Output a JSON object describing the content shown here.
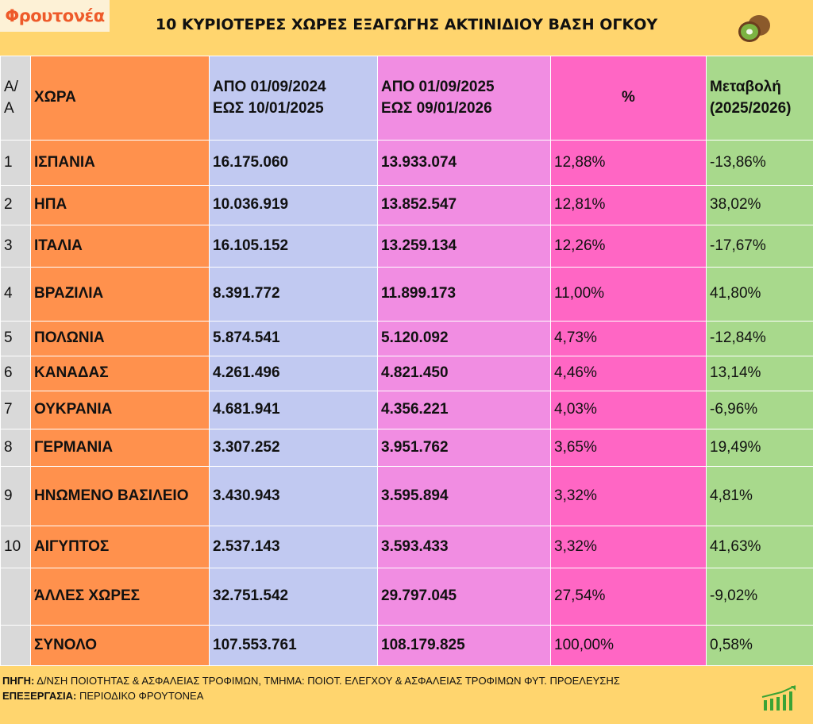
{
  "logo": {
    "brand": "Φρουτονέα"
  },
  "title": "10 ΚΥΡΙΟΤΕΡΕΣ ΧΩΡΕΣ ΕΞΑΓΩΓΗΣ ΑΚΤΙΝΙΔΙΟΥ ΒΑΣΗ ΟΓΚΟΥ",
  "header": {
    "aa": "Α/Α",
    "country": "ΧΩΡΑ",
    "p1_line1": "ΑΠΟ 01/09/2024",
    "p1_line2": "ΕΩΣ  10/01/2025",
    "p2_line1": "ΑΠΟ 01/09/2025",
    "p2_line2": "ΕΩΣ  09/01/2026",
    "pct": "%",
    "change_line1": "Μεταβολή",
    "change_line2": "(2025/2026)"
  },
  "rows": [
    {
      "aa": "1",
      "country": "ΙΣΠΑΝΙΑ",
      "v1": "16.175.060",
      "v2": "13.933.074",
      "pct": "12,88%",
      "change": "-13,86%"
    },
    {
      "aa": "2",
      "country": "ΗΠΑ",
      "v1": "10.036.919",
      "v2": "13.852.547",
      "pct": "12,81%",
      "change": "38,02%"
    },
    {
      "aa": "3",
      "country": "ΙΤΑΛΙΑ",
      "v1": "16.105.152",
      "v2": "13.259.134",
      "pct": "12,26%",
      "change": "-17,67%"
    },
    {
      "aa": "4",
      "country": "ΒΡΑΖΙΛΙΑ",
      "v1": "8.391.772",
      "v2": "11.899.173",
      "pct": "11,00%",
      "change": "41,80%"
    },
    {
      "aa": "5",
      "country": "ΠΟΛΩΝΙΑ",
      "v1": "5.874.541",
      "v2": "5.120.092",
      "pct": "4,73%",
      "change": "-12,84%"
    },
    {
      "aa": "6",
      "country": "ΚΑΝΑΔΑΣ",
      "v1": "4.261.496",
      "v2": "4.821.450",
      "pct": "4,46%",
      "change": "13,14%"
    },
    {
      "aa": "7",
      "country": "ΟΥΚΡΑΝΙΑ",
      "v1": "4.681.941",
      "v2": "4.356.221",
      "pct": "4,03%",
      "change": "-6,96%"
    },
    {
      "aa": "8",
      "country": "ΓΕΡΜΑΝΙΑ",
      "v1": "3.307.252",
      "v2": "3.951.762",
      "pct": "3,65%",
      "change": "19,49%"
    },
    {
      "aa": "9",
      "country": "ΗΝΩΜΕΝΟ ΒΑΣΙΛΕΙΟ",
      "v1": "3.430.943",
      "v2": "3.595.894",
      "pct": "3,32%",
      "change": "4,81%"
    },
    {
      "aa": "10",
      "country": "ΑΙΓΥΠΤΟΣ",
      "v1": "2.537.143",
      "v2": "3.593.433",
      "pct": "3,32%",
      "change": "41,63%"
    },
    {
      "aa": "",
      "country": "ΆΛΛΕΣ ΧΩΡΕΣ",
      "v1": "32.751.542",
      "v2": "29.797.045",
      "pct": "27,54%",
      "change": "-9,02%"
    },
    {
      "aa": "",
      "country": "ΣΥΝΟΛΟ",
      "v1": "107.553.761",
      "v2": "108.179.825",
      "pct": "100,00%",
      "change": "0,58%"
    }
  ],
  "footer": {
    "source_label": "ΠΗΓΗ:",
    "source_text": " Δ/ΝΣΗ ΠΟΙΟΤΗΤΑΣ & ΑΣΦΑΛΕΙΑΣ ΤΡΟΦΙΜΩΝ, ΤΜΗΜΑ: ΠΟΙΟΤ. ΕΛΕΓΧΟΥ & ΑΣΦΑΛΕΙΑΣ ΤΡΟΦΙΜΩΝ ΦΥΤ. ΠΡΟΕΛΕΥΣΗΣ",
    "processing_label": "ΕΠΕΞΕΡΓΑΣΙΑ:",
    "processing_text": " ΠΕΡΙΟΔΙΚΟ ΦΡΟΥΤΟΝΕΑ"
  }
}
